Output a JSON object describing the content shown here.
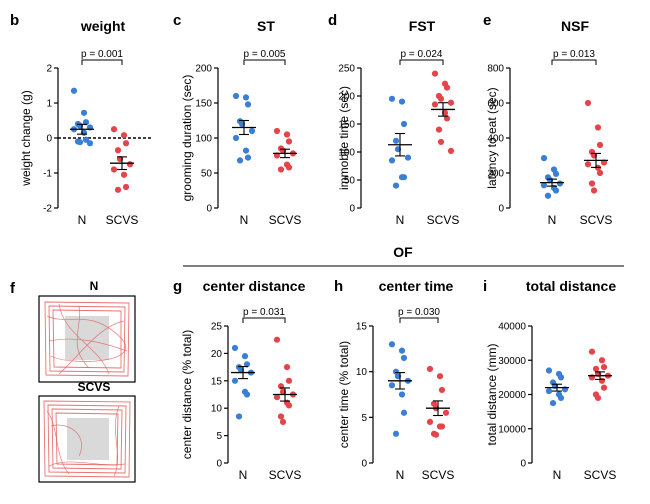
{
  "colors": {
    "N": "#3b7fd4",
    "SCVS": "#e2454a"
  },
  "group_labels": {
    "of": "OF"
  },
  "trace_panel": {
    "label": "f",
    "group1": "N",
    "group2": "SCVS"
  },
  "chart_data": [
    {
      "panel": "b",
      "type": "scatter",
      "title": "weight",
      "ylabel": "weight change (g)",
      "xlabel": "",
      "categories": [
        "N",
        "SCVS"
      ],
      "ylim": [
        -2,
        2
      ],
      "yticks": [
        -2,
        -1,
        0,
        1,
        2
      ],
      "zero_line": true,
      "pvalue": "p = 0.001",
      "series": [
        {
          "name": "N",
          "values": [
            1.35,
            0.72,
            0.45,
            0.4,
            0.35,
            0.3,
            0.25,
            0.15,
            -0.05,
            -0.1,
            -0.12,
            -0.15
          ],
          "mean": 0.25,
          "sem": 0.14
        },
        {
          "name": "SCVS",
          "values": [
            0.25,
            0.08,
            -0.15,
            -0.35,
            -0.6,
            -0.75,
            -0.9,
            -1.05,
            -1.4,
            -1.48
          ],
          "mean": -0.72,
          "sem": 0.18
        }
      ]
    },
    {
      "panel": "c",
      "type": "scatter",
      "title": "ST",
      "ylabel": "grooming duration (sec)",
      "xlabel": "",
      "categories": [
        "N",
        "SCVS"
      ],
      "ylim": [
        0,
        200
      ],
      "yticks": [
        0,
        50,
        100,
        150,
        200
      ],
      "pvalue": "p = 0.005",
      "series": [
        {
          "name": "N",
          "values": [
            160,
            158,
            148,
            124,
            120,
            110,
            100,
            82,
            72,
            68
          ],
          "mean": 115,
          "sem": 10
        },
        {
          "name": "SCVS",
          "values": [
            110,
            105,
            95,
            85,
            82,
            78,
            75,
            62,
            58,
            55
          ],
          "mean": 78,
          "sem": 6
        }
      ]
    },
    {
      "panel": "d",
      "type": "scatter",
      "title": "FST",
      "ylabel": "immobile time (sec)",
      "xlabel": "",
      "categories": [
        "N",
        "SCVS"
      ],
      "ylim": [
        0,
        250
      ],
      "yticks": [
        0,
        50,
        100,
        150,
        200,
        250
      ],
      "pvalue": "p = 0.024",
      "series": [
        {
          "name": "N",
          "values": [
            195,
            190,
            150,
            120,
            105,
            90,
            85,
            55,
            55,
            40
          ],
          "mean": 113,
          "sem": 20
        },
        {
          "name": "SCVS",
          "values": [
            240,
            222,
            215,
            200,
            195,
            188,
            185,
            170,
            160,
            140,
            118,
            102
          ],
          "mean": 176,
          "sem": 12
        }
      ]
    },
    {
      "panel": "e",
      "type": "scatter",
      "title": "NSF",
      "ylabel": "latency to eat (sec)",
      "xlabel": "",
      "categories": [
        "N",
        "SCVS"
      ],
      "ylim": [
        0,
        800
      ],
      "yticks": [
        0,
        200,
        400,
        600,
        800
      ],
      "pvalue": "p = 0.013",
      "series": [
        {
          "name": "N",
          "values": [
            285,
            220,
            195,
            175,
            160,
            140,
            130,
            115,
            100,
            70
          ],
          "mean": 145,
          "sem": 20
        },
        {
          "name": "SCVS",
          "values": [
            600,
            460,
            360,
            320,
            300,
            260,
            250,
            230,
            200,
            140,
            100
          ],
          "mean": 272,
          "sem": 40
        }
      ]
    },
    {
      "panel": "g",
      "type": "scatter",
      "title": "center distance",
      "ylabel": "center distance (% total)",
      "xlabel": "",
      "categories": [
        "N",
        "SCVS"
      ],
      "ylim": [
        0,
        25
      ],
      "yticks": [
        0,
        5,
        10,
        15,
        20,
        25
      ],
      "pvalue": "p = 0.031",
      "series": [
        {
          "name": "N",
          "values": [
            21,
            19.5,
            18,
            17.5,
            17,
            16.5,
            15,
            13,
            12.5,
            8.5
          ],
          "mean": 16.5,
          "sem": 1.1
        },
        {
          "name": "SCVS",
          "values": [
            22.5,
            17.5,
            15,
            14,
            13,
            12.5,
            12,
            11,
            10.5,
            8.5,
            7.5
          ],
          "mean": 12.5,
          "sem": 1.2
        }
      ]
    },
    {
      "panel": "h",
      "type": "scatter",
      "title": "center time",
      "ylabel": "center time (% total)",
      "xlabel": "",
      "categories": [
        "N",
        "SCVS"
      ],
      "ylim": [
        0,
        15
      ],
      "yticks": [
        0,
        5,
        10,
        15
      ],
      "pvalue": "p = 0.030",
      "series": [
        {
          "name": "N",
          "values": [
            13,
            12.3,
            11.5,
            10,
            9.5,
            9,
            8.5,
            7.5,
            5.5,
            3.2
          ],
          "mean": 9.0,
          "sem": 0.9
        },
        {
          "name": "SCVS",
          "values": [
            10.3,
            9.5,
            8,
            6.5,
            6,
            5.5,
            4.5,
            4,
            4,
            3.2,
            3.1
          ],
          "mean": 6.0,
          "sem": 0.8
        }
      ]
    },
    {
      "panel": "i",
      "type": "scatter",
      "title": "total distance",
      "ylabel": "total distance (mm)",
      "xlabel": "",
      "categories": [
        "N",
        "SCVS"
      ],
      "ylim": [
        0,
        40000
      ],
      "yticks": [
        0,
        10000,
        20000,
        30000,
        40000
      ],
      "pvalue": "",
      "series": [
        {
          "name": "N",
          "values": [
            27000,
            26000,
            25000,
            23500,
            22500,
            21500,
            21000,
            20000,
            19000,
            17500
          ],
          "mean": 22000,
          "sem": 1000
        },
        {
          "name": "SCVS",
          "values": [
            32500,
            30000,
            28000,
            27500,
            26000,
            25500,
            25000,
            24000,
            22000,
            20000,
            19000
          ],
          "mean": 25500,
          "sem": 1100
        }
      ]
    }
  ]
}
